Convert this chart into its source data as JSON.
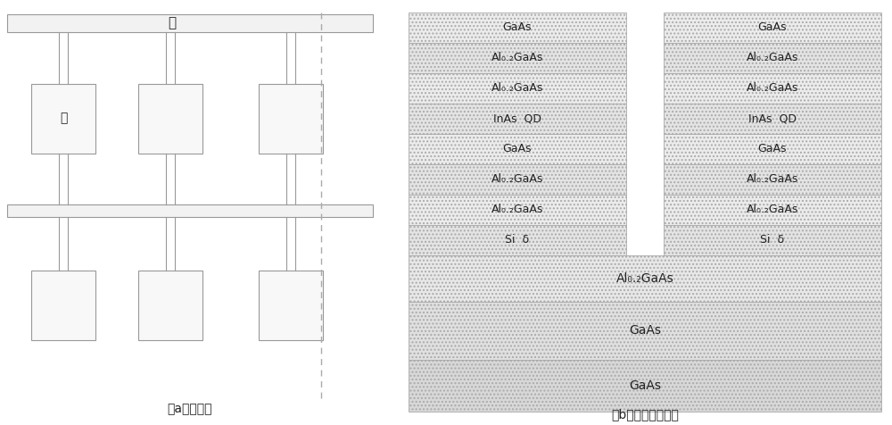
{
  "fig_width": 10.0,
  "fig_height": 4.76,
  "bg_color": "#ffffff",
  "label_a": "（a）俯视图",
  "label_b": "（b）沿虚线剖面图",
  "source_label": "源",
  "drain_label": "漏",
  "layer_labels_top": [
    "GaAs",
    "Al₀.₂GaAs",
    "Al₀.₂GaAs",
    "InAs  QD",
    "GaAs",
    "Al₀.₂GaAs",
    "Al₀.₂GaAs",
    "Si  δ"
  ],
  "bottom_layers": [
    "Al₀.₂GaAs",
    "GaAs",
    "GaAs"
  ],
  "hatch_light": "....",
  "layer_facecolor": "#e8e8e8",
  "layer_facecolor2": "#d8d8d8",
  "border_color": "#aaaaaa",
  "text_color": "#222222"
}
